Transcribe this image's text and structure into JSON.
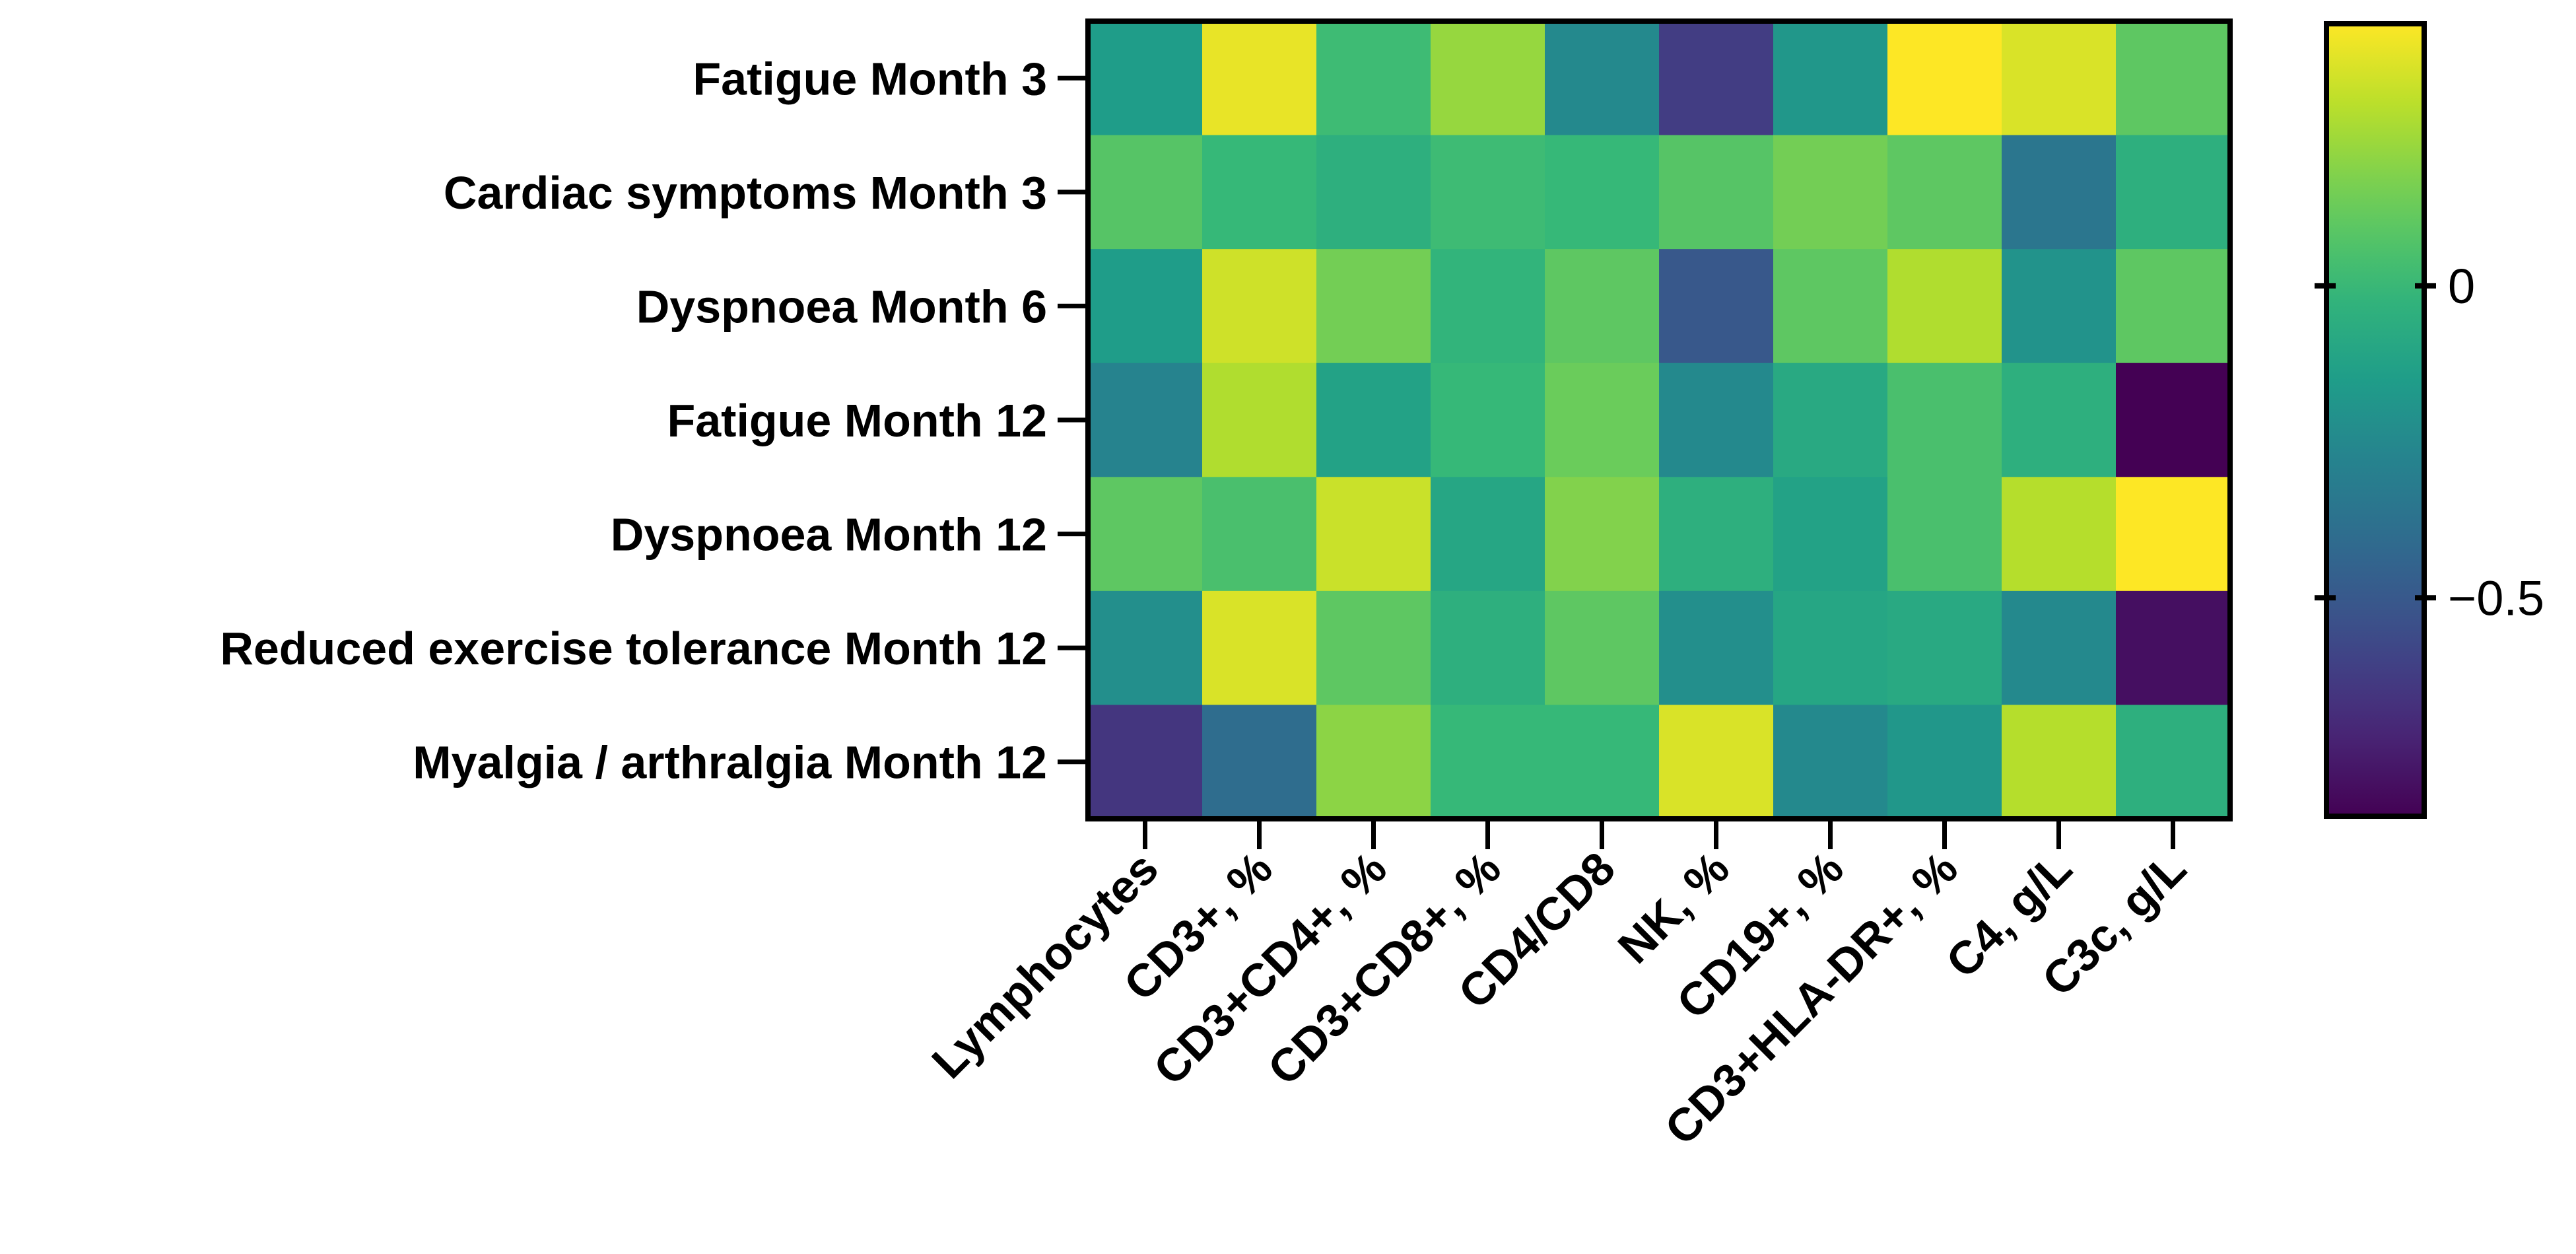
{
  "chart_data": {
    "type": "heatmap",
    "title": "",
    "xlabel": "",
    "ylabel": "",
    "rows": [
      "Fatigue Month 3",
      "Cardiac symptoms Month 3",
      "Dyspnoea Month 6",
      "Fatigue Month 12",
      "Dyspnoea Month 12",
      "Reduced exercise tolerance Month 12",
      "Myalgia / arthralgia Month 12"
    ],
    "columns": [
      "Lymphocytes",
      "CD3+, %",
      "CD3+CD4+, %",
      "CD3+CD8+, %",
      "CD4/CD8",
      "NK, %",
      "CD19+, %",
      "CD3+HLA-DR+, %",
      "C4, g/L",
      "C3c, g/L"
    ],
    "values": [
      [
        -0.15,
        0.38,
        0.02,
        0.22,
        -0.25,
        -0.62,
        -0.18,
        0.42,
        0.35,
        0.1
      ],
      [
        0.08,
        0.0,
        -0.05,
        0.02,
        0.0,
        0.08,
        0.15,
        0.1,
        -0.35,
        -0.05
      ],
      [
        -0.15,
        0.33,
        0.15,
        -0.02,
        0.1,
        -0.5,
        0.1,
        0.27,
        -0.2,
        0.1
      ],
      [
        -0.28,
        0.27,
        -0.12,
        0.0,
        0.13,
        -0.25,
        -0.08,
        0.05,
        -0.05,
        -0.85
      ],
      [
        0.1,
        0.05,
        0.32,
        -0.1,
        0.18,
        -0.05,
        -0.12,
        0.05,
        0.28,
        0.42
      ],
      [
        -0.22,
        0.35,
        0.1,
        -0.05,
        0.1,
        -0.22,
        -0.1,
        -0.08,
        -0.25,
        -0.8
      ],
      [
        -0.65,
        -0.4,
        0.2,
        0.0,
        0.0,
        0.35,
        -0.25,
        -0.18,
        0.28,
        -0.05
      ]
    ],
    "colorscale": "viridis",
    "zlim": [
      -0.85,
      0.42
    ],
    "colorbar_ticks": [
      {
        "value": 0,
        "label": "0"
      },
      {
        "value": -0.5,
        "label": "−0.5"
      }
    ]
  }
}
